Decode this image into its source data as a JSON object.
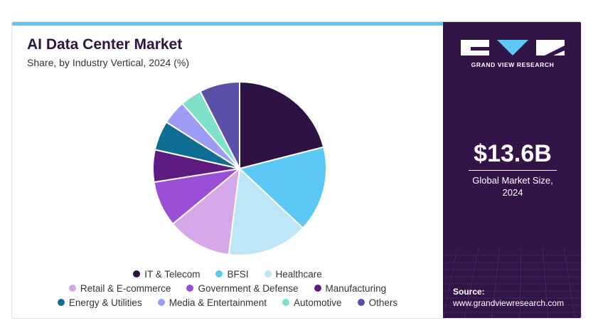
{
  "title": "AI Data Center Market",
  "subtitle": "Share, by Industry Vertical, 2024 (%)",
  "brand": {
    "logo_text": "GRAND VIEW RESEARCH",
    "panel_color": "#331447",
    "accent_color": "#5bc8f5"
  },
  "stat": {
    "value": "$13.6B",
    "label_line1": "Global Market Size,",
    "label_line2": "2024"
  },
  "source": {
    "label": "Source:",
    "url": "www.grandviewresearch.com"
  },
  "chart_data": {
    "type": "pie",
    "title": "AI Data Center Market",
    "subtitle": "Share, by Industry Vertical, 2024 (%)",
    "legend_position": "bottom",
    "slices": [
      {
        "label": "IT & Telecom",
        "value": 21,
        "color": "#2e1245"
      },
      {
        "label": "BFSI",
        "value": 16,
        "color": "#5bc8f5"
      },
      {
        "label": "Healthcare",
        "value": 15,
        "color": "#bde7f8"
      },
      {
        "label": "Retail & E-commerce",
        "value": 12,
        "color": "#d6a8ea"
      },
      {
        "label": "Government & Defense",
        "value": 8.5,
        "color": "#9b4fd6"
      },
      {
        "label": "Manufacturing",
        "value": 6,
        "color": "#5e1c82"
      },
      {
        "label": "Energy & Utilities",
        "value": 5.5,
        "color": "#0e6e94"
      },
      {
        "label": "Media & Entertainment",
        "value": 4.5,
        "color": "#9d9bf4"
      },
      {
        "label": "Automotive",
        "value": 4,
        "color": "#7fe0cc"
      },
      {
        "label": "Others",
        "value": 7.5,
        "color": "#5a50a8"
      }
    ]
  }
}
